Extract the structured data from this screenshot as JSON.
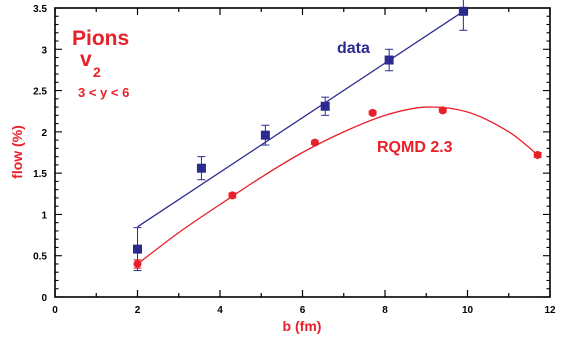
{
  "chart_data": {
    "type": "scatter",
    "xlabel": "b (fm)",
    "ylabel": "flow (%)",
    "xlim": [
      0,
      12
    ],
    "ylim": [
      0,
      3.5
    ],
    "x_ticks": [
      "0",
      "2",
      "4",
      "6",
      "8",
      "10",
      "12"
    ],
    "y_ticks": [
      "0",
      "0.5",
      "1",
      "1.5",
      "2",
      "2.5",
      "3",
      "3.5"
    ],
    "grid": false,
    "annotations": {
      "particle": "Pions",
      "observable_main": "v",
      "observable_sub": "2",
      "rapidity": "3 < y < 6"
    },
    "series": [
      {
        "name": "data",
        "color": "#2b2b8f",
        "marker": "square",
        "points": [
          {
            "x": 2.0,
            "y": 0.58,
            "err": 0.26
          },
          {
            "x": 3.55,
            "y": 1.56,
            "err": 0.14
          },
          {
            "x": 5.1,
            "y": 1.96,
            "err": 0.12
          },
          {
            "x": 6.55,
            "y": 2.31,
            "err": 0.11
          },
          {
            "x": 8.1,
            "y": 2.87,
            "err": 0.13
          },
          {
            "x": 9.9,
            "y": 3.46,
            "err": 0.23
          }
        ],
        "fit": {
          "kind": "linear",
          "x": [
            2.0,
            9.9
          ],
          "y": [
            0.85,
            3.46
          ]
        }
      },
      {
        "name": "RQMD 2.3",
        "color": "#e8202a",
        "marker": "circle",
        "points": [
          {
            "x": 2.0,
            "y": 0.4,
            "err": 0.05
          },
          {
            "x": 4.3,
            "y": 1.23,
            "err": 0.03
          },
          {
            "x": 6.3,
            "y": 1.87,
            "err": 0.02
          },
          {
            "x": 7.7,
            "y": 2.23,
            "err": 0.02
          },
          {
            "x": 9.4,
            "y": 2.26,
            "err": 0.02
          },
          {
            "x": 11.7,
            "y": 1.72,
            "err": 0.03
          }
        ],
        "fit": {
          "kind": "curve",
          "x": [
            2.0,
            3.0,
            4.0,
            5.0,
            6.0,
            7.0,
            8.0,
            9.0,
            10.0,
            11.0,
            11.7
          ],
          "y": [
            0.4,
            0.78,
            1.12,
            1.45,
            1.75,
            2.0,
            2.2,
            2.3,
            2.24,
            2.0,
            1.72
          ]
        }
      }
    ]
  }
}
